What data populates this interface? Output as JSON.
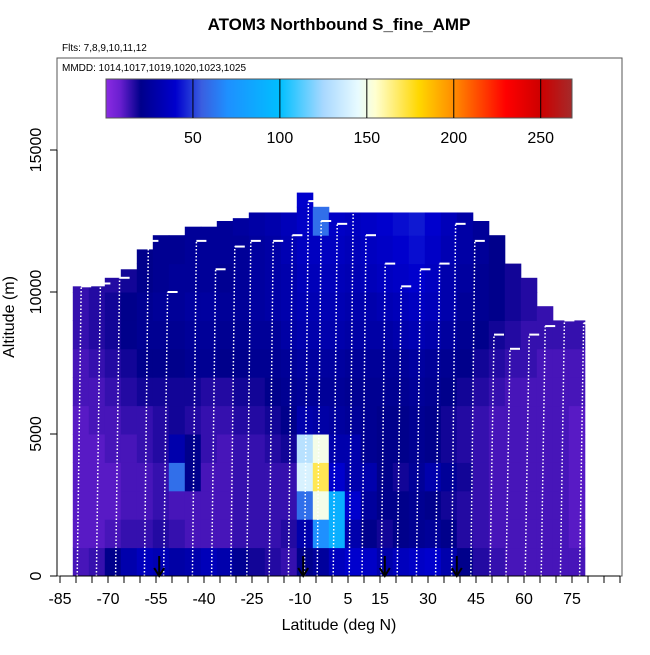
{
  "chart_data": {
    "type": "heatmap",
    "title": "ATOM3 Northbound S_fine_AMP",
    "subtitle_flights": "Flts: 7,8,9,10,11,12",
    "subtitle_dates": "MMDD: 1014,1017,1019,1020,1023,1025",
    "xlabel": "Latitude (deg N)",
    "ylabel": "Altitude (m)",
    "xlim": [
      -90,
      90
    ],
    "ylim": [
      0,
      18200
    ],
    "x_ticks": [
      -85,
      -80,
      -75,
      -70,
      -65,
      -60,
      -55,
      -50,
      -45,
      -40,
      -35,
      -30,
      -25,
      -20,
      -15,
      -10,
      -5,
      0,
      5,
      10,
      15,
      20,
      25,
      30,
      35,
      40,
      45,
      50,
      55,
      60,
      65,
      70,
      75,
      80,
      85,
      90
    ],
    "x_tick_labels": [
      "-85",
      "-70",
      "-55",
      "-40",
      "-25",
      "-10",
      "5",
      "15",
      "30",
      "45",
      "60",
      "75"
    ],
    "x_tick_label_values": [
      -85,
      -70,
      -55,
      -40,
      -25,
      -10,
      5,
      15,
      30,
      45,
      60,
      75
    ],
    "y_ticks": [
      0,
      5000,
      10000,
      15000
    ],
    "y_tick_labels": [
      "0",
      "5000",
      "10000",
      "15000"
    ],
    "colorbar": {
      "range": [
        0,
        268
      ],
      "ticks": [
        50,
        100,
        150,
        200,
        250
      ],
      "tick_labels": [
        "50",
        "100",
        "150",
        "200",
        "250"
      ],
      "stops": [
        [
          0,
          "#8a2be2"
        ],
        [
          8,
          "#6a1fd0"
        ],
        [
          20,
          "#00008b"
        ],
        [
          40,
          "#0000cd"
        ],
        [
          55,
          "#3a5ee0"
        ],
        [
          70,
          "#1e90ff"
        ],
        [
          100,
          "#00bfff"
        ],
        [
          125,
          "#a8d8ff"
        ],
        [
          145,
          "#e8fbff"
        ],
        [
          155,
          "#ffffd0"
        ],
        [
          180,
          "#ffd700"
        ],
        [
          200,
          "#ff8c00"
        ],
        [
          230,
          "#ff0000"
        ],
        [
          250,
          "#cd0000"
        ],
        [
          268,
          "#a52a2a"
        ]
      ]
    },
    "lat_bins": [
      -80,
      -75,
      -70,
      -65,
      -60,
      -55,
      -50,
      -45,
      -40,
      -35,
      -30,
      -25,
      -20,
      -15,
      -10,
      -5,
      0,
      5,
      10,
      15,
      20,
      25,
      30,
      35,
      40,
      45,
      50,
      55,
      60,
      65,
      70,
      75
    ],
    "lat_bin_width": 5,
    "alt_bin_height": 1000,
    "column_top_altitudes": [
      10200,
      10200,
      10500,
      10800,
      11500,
      12000,
      12000,
      12300,
      12300,
      12500,
      12600,
      12800,
      12800,
      12800,
      13500,
      13000,
      12800,
      12800,
      12800,
      12800,
      12800,
      12800,
      12800,
      12800,
      12800,
      12500,
      12000,
      11000,
      10500,
      9500,
      9000,
      9000
    ],
    "values": [
      [
        12,
        14,
        20,
        30,
        35,
        32,
        28,
        30,
        34,
        30,
        22,
        18,
        16,
        14,
        20,
        25,
        35,
        40,
        38,
        30,
        35,
        38,
        40,
        30,
        20,
        16,
        14,
        12,
        12,
        12,
        12,
        12
      ],
      [
        10,
        10,
        12,
        14,
        14,
        16,
        14,
        12,
        12,
        12,
        14,
        14,
        14,
        16,
        30,
        70,
        90,
        30,
        20,
        18,
        20,
        22,
        24,
        20,
        16,
        14,
        12,
        12,
        12,
        12,
        12,
        10
      ],
      [
        10,
        10,
        10,
        12,
        12,
        14,
        12,
        12,
        12,
        12,
        14,
        14,
        14,
        14,
        60,
        150,
        90,
        40,
        25,
        20,
        20,
        22,
        20,
        18,
        16,
        14,
        12,
        12,
        12,
        12,
        12,
        10
      ],
      [
        10,
        10,
        10,
        12,
        12,
        14,
        60,
        20,
        12,
        12,
        14,
        14,
        14,
        14,
        140,
        170,
        40,
        30,
        30,
        20,
        18,
        24,
        30,
        24,
        18,
        14,
        12,
        12,
        12,
        12,
        12,
        10
      ],
      [
        10,
        10,
        12,
        12,
        14,
        16,
        30,
        20,
        14,
        12,
        14,
        14,
        16,
        18,
        130,
        150,
        30,
        30,
        22,
        20,
        20,
        22,
        20,
        18,
        16,
        14,
        12,
        12,
        12,
        12,
        12,
        10
      ],
      [
        10,
        12,
        12,
        14,
        14,
        16,
        18,
        16,
        14,
        14,
        16,
        16,
        18,
        20,
        30,
        28,
        26,
        24,
        22,
        20,
        20,
        22,
        20,
        18,
        16,
        14,
        12,
        12,
        12,
        12,
        12,
        10
      ],
      [
        12,
        12,
        14,
        16,
        18,
        18,
        18,
        18,
        16,
        16,
        18,
        18,
        20,
        22,
        24,
        24,
        24,
        22,
        22,
        22,
        22,
        24,
        22,
        20,
        18,
        16,
        14,
        12,
        12,
        12,
        12,
        12
      ],
      [
        12,
        14,
        16,
        18,
        20,
        20,
        20,
        22,
        22,
        20,
        20,
        22,
        22,
        24,
        26,
        26,
        26,
        24,
        24,
        24,
        24,
        26,
        24,
        22,
        20,
        18,
        16,
        14,
        14,
        12,
        12,
        12
      ],
      [
        14,
        16,
        18,
        20,
        22,
        22,
        22,
        24,
        24,
        22,
        22,
        24,
        24,
        28,
        30,
        30,
        30,
        28,
        28,
        28,
        30,
        32,
        30,
        26,
        22,
        20,
        18,
        16,
        14,
        14,
        14,
        14
      ],
      [
        14,
        16,
        18,
        20,
        22,
        24,
        24,
        26,
        26,
        24,
        24,
        26,
        28,
        30,
        32,
        32,
        32,
        30,
        30,
        32,
        34,
        36,
        34,
        30,
        24,
        22,
        20,
        18,
        16,
        14,
        14,
        14
      ],
      [
        14,
        16,
        16,
        18,
        20,
        22,
        24,
        24,
        24,
        22,
        24,
        26,
        28,
        30,
        34,
        34,
        34,
        32,
        34,
        36,
        38,
        40,
        36,
        30,
        26,
        22,
        20,
        18,
        16,
        16,
        14,
        14
      ],
      [
        14,
        14,
        16,
        18,
        20,
        22,
        22,
        24,
        24,
        24,
        24,
        26,
        28,
        32,
        36,
        36,
        36,
        34,
        36,
        38,
        40,
        42,
        38,
        32,
        28,
        24,
        20,
        18,
        16,
        16,
        14,
        14
      ],
      [
        14,
        14,
        16,
        18,
        20,
        22,
        22,
        24,
        24,
        24,
        26,
        28,
        30,
        34,
        38,
        60,
        38,
        36,
        38,
        40,
        42,
        44,
        40,
        34,
        28,
        24,
        20,
        18,
        16,
        16,
        14,
        14
      ],
      [
        40,
        40,
        40,
        40,
        40,
        40,
        40,
        40,
        40,
        40,
        40,
        40,
        40,
        40,
        40,
        40,
        40,
        40,
        40,
        40,
        40,
        40,
        40,
        40,
        40,
        40,
        40,
        40,
        40,
        40,
        40,
        40
      ]
    ],
    "flight_profiles": [
      [
        -79,
        10200
      ],
      [
        -73,
        10300
      ],
      [
        -67,
        10500
      ],
      [
        -58,
        11800
      ],
      [
        -52,
        10000
      ],
      [
        -43,
        11800
      ],
      [
        -37,
        10800
      ],
      [
        -31,
        11600
      ],
      [
        -26,
        11800
      ],
      [
        -19,
        11800
      ],
      [
        -13,
        12000
      ],
      [
        -8,
        13200
      ],
      [
        -4,
        12500
      ],
      [
        1,
        12400
      ],
      [
        6,
        12900
      ],
      [
        10,
        12000
      ],
      [
        16,
        11000
      ],
      [
        21,
        10200
      ],
      [
        27,
        10800
      ],
      [
        33,
        11000
      ],
      [
        38,
        12400
      ],
      [
        44,
        11800
      ],
      [
        50,
        8500
      ],
      [
        55,
        8000
      ],
      [
        61,
        8500
      ],
      [
        66,
        8800
      ],
      [
        72,
        9000
      ],
      [
        78,
        8900
      ]
    ],
    "arrow_latitudes": [
      -54,
      -9,
      16.5,
      39
    ]
  }
}
